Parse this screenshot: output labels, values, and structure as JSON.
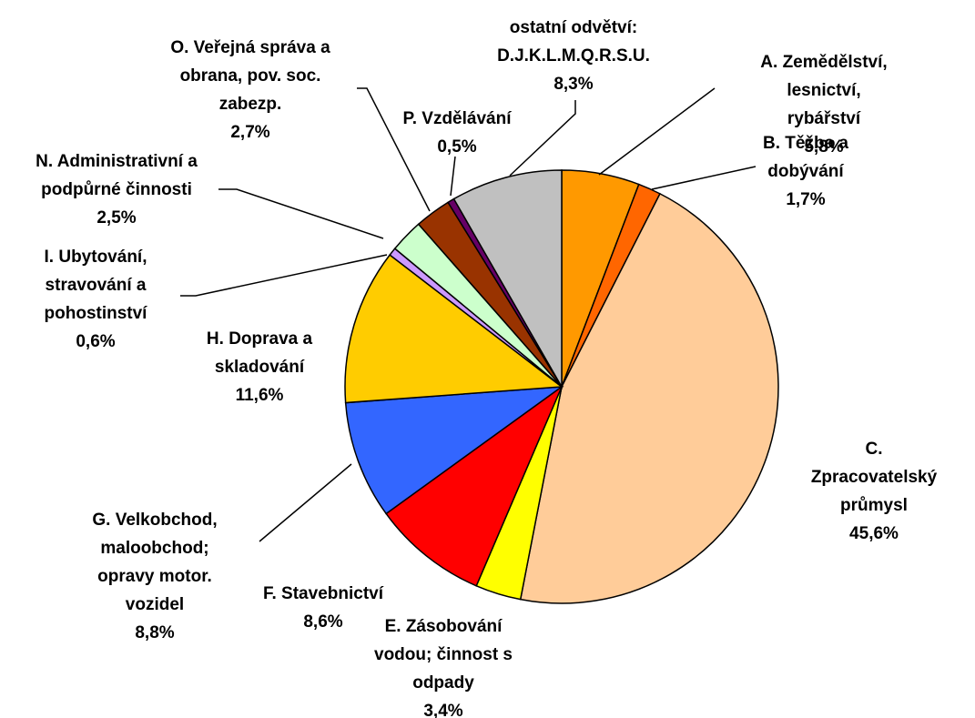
{
  "chart_data": {
    "type": "pie",
    "categories": [
      "A. Zemědělství,\nlesnictví, rybářství",
      "B. Těžba a\ndobývání",
      "C. Zpracovatelský\nprůmysl",
      "E. Zásobování\nvodou; činnost s\nodpady",
      "F. Stavebnictví",
      "G. Velkobchod,\nmaloobchod;\nopravy motor.\nvozidel",
      "H. Doprava a\nskladování",
      "I. Ubytování,\nstravování a\npohostinství",
      "N. Administrativní a\npodpůrné činnosti",
      "O. Veřejná správa a\nobrana, pov. soc.\nzabezp.",
      "P. Vzdělávání",
      "ostatní odvětví:\nD.J.K.L.M.Q.R.S.U."
    ],
    "values": [
      5.8,
      1.7,
      45.6,
      3.4,
      8.6,
      8.8,
      11.6,
      0.6,
      2.5,
      2.7,
      0.5,
      8.3
    ],
    "value_labels": [
      "5,8%",
      "1,7%",
      "45,6%",
      "3,4%",
      "8,6%",
      "8,8%",
      "11,6%",
      "0,6%",
      "2,5%",
      "2,7%",
      "0,5%",
      "8,3%"
    ],
    "colors": [
      "#ff9900",
      "#ff6600",
      "#ffcc99",
      "#ffff00",
      "#ff0000",
      "#3366ff",
      "#ffcc00",
      "#cc99ff",
      "#ccffcc",
      "#993300",
      "#660066",
      "#c0c0c0"
    ]
  }
}
